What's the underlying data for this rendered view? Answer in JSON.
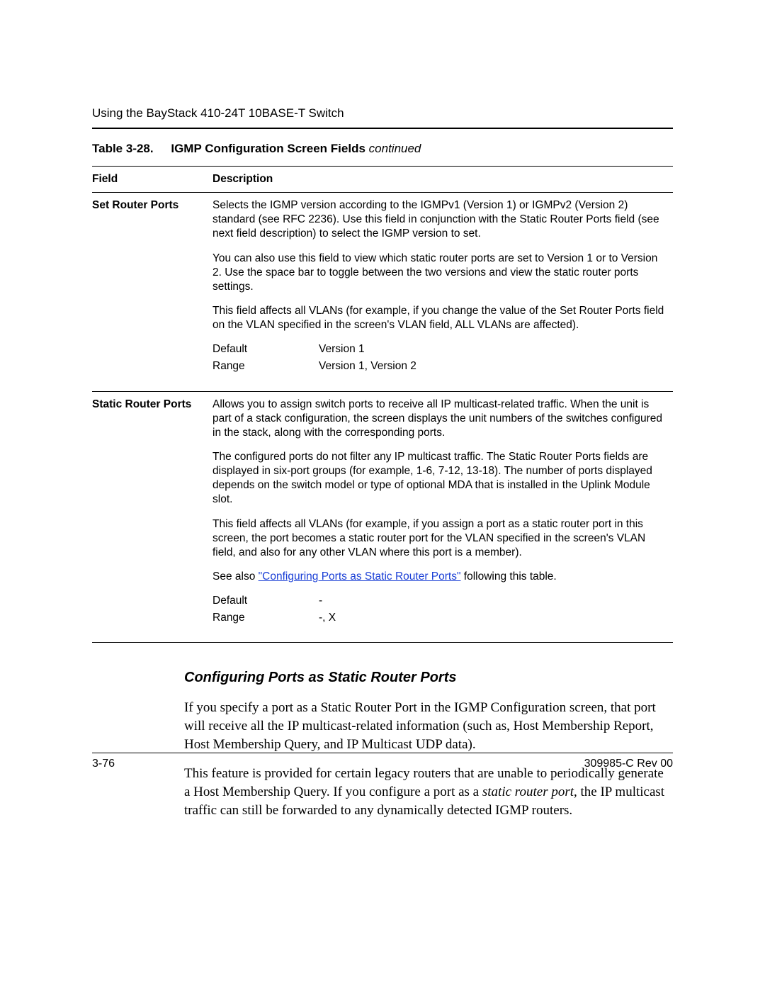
{
  "header": {
    "running_head": "Using the BayStack 410-24T 10BASE-T Switch"
  },
  "table_caption": {
    "number": "Table 3-28.",
    "title": "IGMP Configuration Screen Fields",
    "continued": "continued"
  },
  "columns": {
    "field": "Field",
    "description": "Description"
  },
  "rows": [
    {
      "field": "Set Router Ports",
      "paras": [
        "Selects the IGMP version according to the IGMPv1 (Version 1) or IGMPv2 (Version 2) standard (see RFC 2236). Use this field in conjunction with the Static Router Ports field (see next field description) to select the IGMP version to set.",
        "You can also use this field to view which static router ports are set to Version 1 or to Version 2. Use the space bar to toggle between the two versions and view the static router ports settings.",
        "This field affects all VLANs (for example, if you change the value of the Set Router Ports field on the VLAN specified in the screen's VLAN field, ALL VLANs are affected)."
      ],
      "default_label": "Default",
      "default_value": "Version 1",
      "range_label": "Range",
      "range_value": "Version 1, Version 2"
    },
    {
      "field": "Static Router Ports",
      "paras": [
        "Allows you to assign switch ports to receive all IP multicast-related traffic. When the unit is part of a stack configuration, the screen displays the unit numbers of the switches configured in the stack, along with the corresponding ports.",
        "The configured ports do not filter any IP multicast traffic. The Static Router Ports fields are displayed in six-port groups (for example, 1-6, 7-12, 13-18). The number of ports displayed depends on the switch model or type of optional MDA that is installed in the Uplink Module slot.",
        "This field affects all VLANs (for example, if you assign a port as a static router port in this screen, the port becomes a static router port for the VLAN specified in the screen's VLAN field, and also for any other VLAN where this port is a member)."
      ],
      "see_also_pre": "See also ",
      "see_also_link": "\"Configuring Ports as Static Router Ports\"",
      "see_also_post": " following this table.",
      "default_label": "Default",
      "default_value": "-",
      "range_label": "Range",
      "range_value": "-, X"
    }
  ],
  "section": {
    "heading": "Configuring Ports as Static Router Ports",
    "p1": "If you specify a port as a Static Router Port in the IGMP Configuration screen, that port will receive all the IP multicast-related information (such as, Host Membership Report, Host Membership Query, and IP Multicast UDP data).",
    "p2a": "This feature is provided for certain legacy routers that are unable to periodically generate a Host Membership Query. If you configure a port as a ",
    "p2_ital": "static router port",
    "p2b": ", the IP multicast traffic can still be forwarded to any dynamically detected IGMP routers."
  },
  "footer": {
    "page": "3-76",
    "doc": "309985-C Rev 00"
  },
  "colors": {
    "link": "#1a3fd6",
    "text": "#000000",
    "background": "#ffffff"
  }
}
